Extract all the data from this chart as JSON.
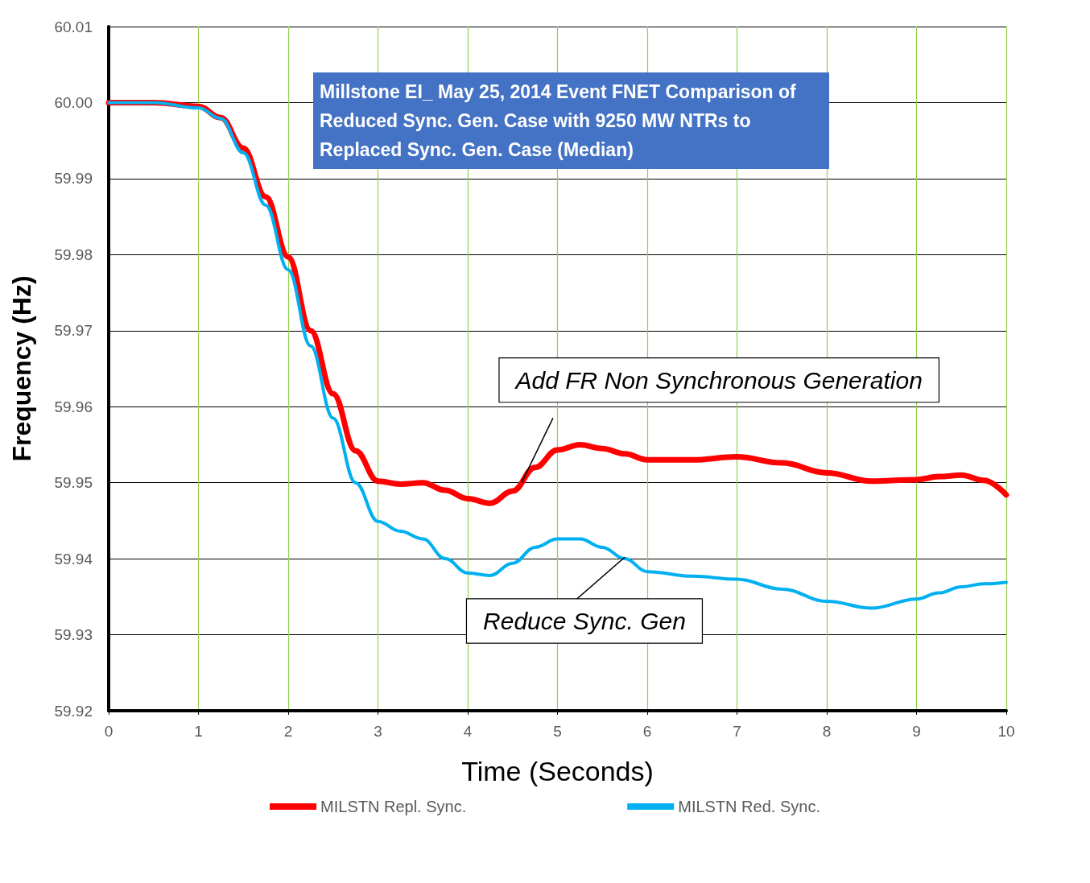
{
  "chart_data": {
    "type": "line",
    "title": "Millstone EI_ May 25, 2014 Event FNET Comparison of Reduced Sync. Gen. Case with 9250 MW NTRs to  Replaced Sync. Gen. Case (Median)",
    "xlabel": "Time (Seconds)",
    "ylabel": "Frequency (Hz)",
    "x": [
      0,
      0.5,
      1,
      1.25,
      1.5,
      1.75,
      2,
      2.25,
      2.5,
      2.75,
      3,
      3.25,
      3.5,
      3.75,
      4,
      4.25,
      4.5,
      4.75,
      5,
      5.25,
      5.5,
      5.75,
      6,
      6.5,
      7,
      7.5,
      8,
      8.5,
      9,
      9.25,
      9.5,
      9.75,
      10
    ],
    "series": [
      {
        "name": "MILSTN Repl. Sync.",
        "color": "#ff0000",
        "values": [
          60.0,
          60.0,
          59.9995,
          59.998,
          59.994,
          59.9876,
          59.9797,
          59.97,
          59.9617,
          59.9542,
          59.9502,
          59.9498,
          59.95,
          59.949,
          59.9479,
          59.9473,
          59.9489,
          59.952,
          59.9543,
          59.955,
          59.9545,
          59.9538,
          59.953,
          59.953,
          59.9534,
          59.9526,
          59.9513,
          59.9502,
          59.9504,
          59.9508,
          59.951,
          59.9503,
          59.9484
        ]
      },
      {
        "name": "MILSTN Red. Sync.",
        "color": "#00b0f0",
        "values": [
          60.0,
          60.0,
          59.9993,
          59.9979,
          59.9934,
          59.9865,
          59.978,
          59.968,
          59.9585,
          59.95,
          59.9449,
          59.9436,
          59.9426,
          59.94,
          59.9381,
          59.9378,
          59.9394,
          59.9415,
          59.9426,
          59.9426,
          59.9415,
          59.94,
          59.9383,
          59.9377,
          59.9373,
          59.936,
          59.9344,
          59.9335,
          59.9347,
          59.9355,
          59.9363,
          59.9367,
          59.9369
        ]
      }
    ],
    "xlim": [
      0,
      10
    ],
    "xticks": [
      0,
      1,
      2,
      3,
      4,
      5,
      6,
      7,
      8,
      9,
      10
    ],
    "ylim": [
      59.92,
      60.01
    ],
    "yticks": [
      59.92,
      59.93,
      59.94,
      59.95,
      59.96,
      59.97,
      59.98,
      59.99,
      {
        "value": 60,
        "label": "60.00"
      },
      60.01
    ],
    "annotations": [
      {
        "text": "Add FR Non Synchronous Generation",
        "x": 4.6,
        "y": 59.95
      },
      {
        "text": "Reduce Sync. Gen",
        "x": 5.75,
        "y": 59.9402
      }
    ],
    "grid": true,
    "legend": "bottom",
    "marker": "none",
    "line_style": "solid"
  }
}
